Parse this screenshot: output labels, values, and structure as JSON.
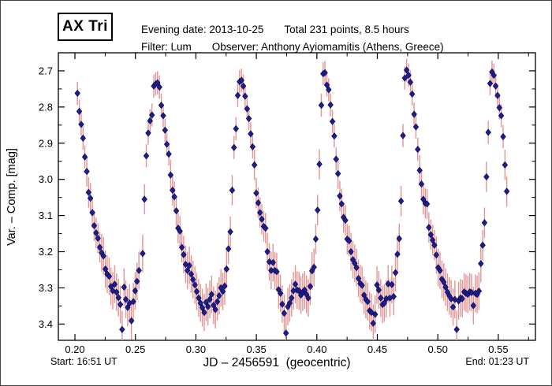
{
  "header": {
    "star_name": "AX Tri",
    "evening_date": "Evening date: 2013-10-25",
    "total_points": "Total 231 points, 8.5 hours",
    "filter": "Filter: Lum",
    "observer": "Observer: Anthony Ayiomamitis (Athens, Greece)"
  },
  "footer": {
    "start_time": "Start: 16:51 UT",
    "end_time": "End: 01:23 UT"
  },
  "chart_data": {
    "type": "scatter",
    "title": "AX Tri",
    "xlabel": "JD – 2456591  (geocentric)",
    "ylabel": "Var. – Comp. [mag]",
    "xlim": [
      0.1863,
      0.5807
    ],
    "ylim_top_bottom": [
      2.65,
      3.445
    ],
    "y_axis_inverted_magnitudes": true,
    "grid": false,
    "x_ticks": {
      "major": [
        0.2,
        0.25,
        0.3,
        0.35,
        0.4,
        0.45,
        0.5,
        0.55
      ],
      "labels": [
        "0.20",
        "0.25",
        "0.30",
        "0.35",
        "0.40",
        "0.45",
        "0.50",
        "0.55"
      ],
      "minor_step": 0.025
    },
    "y_ticks": {
      "major": [
        2.7,
        2.8,
        2.9,
        3.0,
        3.1,
        3.2,
        3.3,
        3.4
      ],
      "labels": [
        "2.7",
        "2.8",
        "2.9",
        "3.0",
        "3.1",
        "3.2",
        "3.3",
        "3.4"
      ],
      "minor_step": 0.05
    },
    "marker": {
      "shape": "diamond",
      "color": "#1e1e8f",
      "edge": "#0d0d5e",
      "half_width": 3.2,
      "half_height": 4.0
    },
    "error_bars": {
      "color": "#e59393",
      "line_width": 1.4,
      "rule": {
        "thresholds": [
          2.95,
          3.2
        ],
        "values": [
          0.032,
          0.042,
          0.052
        ]
      }
    },
    "points": [
      [
        0.2021,
        2.762
      ],
      [
        0.2036,
        2.812
      ],
      [
        0.2052,
        2.848
      ],
      [
        0.2067,
        2.886
      ],
      [
        0.2082,
        2.938
      ],
      [
        0.2098,
        2.978
      ],
      [
        0.2113,
        3.036
      ],
      [
        0.2128,
        3.052
      ],
      [
        0.2144,
        3.092
      ],
      [
        0.2159,
        3.128
      ],
      [
        0.2175,
        3.148
      ],
      [
        0.219,
        3.163
      ],
      [
        0.2206,
        3.188
      ],
      [
        0.2221,
        3.203
      ],
      [
        0.2236,
        3.212
      ],
      [
        0.2252,
        3.248
      ],
      [
        0.2267,
        3.262
      ],
      [
        0.2283,
        3.268
      ],
      [
        0.2298,
        3.296
      ],
      [
        0.2313,
        3.308
      ],
      [
        0.2329,
        3.29
      ],
      [
        0.2344,
        3.312
      ],
      [
        0.236,
        3.327
      ],
      [
        0.2375,
        3.346
      ],
      [
        0.239,
        3.415
      ],
      [
        0.2406,
        3.298
      ],
      [
        0.2421,
        3.332
      ],
      [
        0.2436,
        3.354
      ],
      [
        0.2452,
        3.342
      ],
      [
        0.2467,
        3.391
      ],
      [
        0.2483,
        3.338
      ],
      [
        0.2498,
        3.308
      ],
      [
        0.2513,
        3.282
      ],
      [
        0.2529,
        3.252
      ],
      [
        0.256,
        3.205
      ],
      [
        0.2575,
        3.055
      ],
      [
        0.259,
        2.935
      ],
      [
        0.2606,
        2.872
      ],
      [
        0.2621,
        2.838
      ],
      [
        0.2637,
        2.822
      ],
      [
        0.2652,
        2.742
      ],
      [
        0.2668,
        2.736
      ],
      [
        0.2683,
        2.733
      ],
      [
        0.2699,
        2.745
      ],
      [
        0.2714,
        2.795
      ],
      [
        0.273,
        2.824
      ],
      [
        0.2745,
        2.864
      ],
      [
        0.276,
        2.903
      ],
      [
        0.2776,
        2.93
      ],
      [
        0.2791,
        2.988
      ],
      [
        0.2807,
        3.03
      ],
      [
        0.2822,
        3.048
      ],
      [
        0.2838,
        3.087
      ],
      [
        0.2853,
        3.135
      ],
      [
        0.2868,
        3.143
      ],
      [
        0.2884,
        3.188
      ],
      [
        0.2899,
        3.208
      ],
      [
        0.2915,
        3.235
      ],
      [
        0.293,
        3.252
      ],
      [
        0.2946,
        3.238
      ],
      [
        0.2961,
        3.262
      ],
      [
        0.2976,
        3.277
      ],
      [
        0.2992,
        3.292
      ],
      [
        0.3007,
        3.31
      ],
      [
        0.3023,
        3.328
      ],
      [
        0.3038,
        3.342
      ],
      [
        0.3053,
        3.355
      ],
      [
        0.3069,
        3.368
      ],
      [
        0.3084,
        3.34
      ],
      [
        0.31,
        3.352
      ],
      [
        0.3115,
        3.332
      ],
      [
        0.313,
        3.318
      ],
      [
        0.3146,
        3.348
      ],
      [
        0.3161,
        3.36
      ],
      [
        0.3177,
        3.338
      ],
      [
        0.3192,
        3.322
      ],
      [
        0.3207,
        3.3
      ],
      [
        0.3223,
        3.31
      ],
      [
        0.3238,
        3.295
      ],
      [
        0.3254,
        3.248
      ],
      [
        0.3269,
        3.192
      ],
      [
        0.3285,
        3.145
      ],
      [
        0.33,
        3.03
      ],
      [
        0.3315,
        2.912
      ],
      [
        0.3331,
        2.86
      ],
      [
        0.3346,
        2.768
      ],
      [
        0.3361,
        2.73
      ],
      [
        0.3377,
        2.726
      ],
      [
        0.3392,
        2.742
      ],
      [
        0.3407,
        2.77
      ],
      [
        0.3423,
        2.805
      ],
      [
        0.3438,
        2.832
      ],
      [
        0.3453,
        2.874
      ],
      [
        0.3469,
        2.91
      ],
      [
        0.3484,
        2.96
      ],
      [
        0.3499,
        3.038
      ],
      [
        0.3515,
        3.065
      ],
      [
        0.353,
        3.092
      ],
      [
        0.3545,
        3.11
      ],
      [
        0.3561,
        3.13
      ],
      [
        0.3576,
        3.135
      ],
      [
        0.3591,
        3.2
      ],
      [
        0.3607,
        3.228
      ],
      [
        0.3622,
        3.252
      ],
      [
        0.3638,
        3.23
      ],
      [
        0.3653,
        3.252
      ],
      [
        0.3668,
        3.255
      ],
      [
        0.3684,
        3.305
      ],
      [
        0.3699,
        3.315
      ],
      [
        0.3714,
        3.345
      ],
      [
        0.373,
        3.37
      ],
      [
        0.3745,
        3.425
      ],
      [
        0.376,
        3.352
      ],
      [
        0.3776,
        3.342
      ],
      [
        0.3791,
        3.328
      ],
      [
        0.3806,
        3.308
      ],
      [
        0.3822,
        3.29
      ],
      [
        0.3837,
        3.306
      ],
      [
        0.3853,
        3.308
      ],
      [
        0.3868,
        3.32
      ],
      [
        0.3883,
        3.312
      ],
      [
        0.3899,
        3.306
      ],
      [
        0.3914,
        3.318
      ],
      [
        0.3929,
        3.328
      ],
      [
        0.3945,
        3.296
      ],
      [
        0.396,
        3.253
      ],
      [
        0.3976,
        3.243
      ],
      [
        0.3991,
        3.165
      ],
      [
        0.4006,
        3.085
      ],
      [
        0.4021,
        2.958
      ],
      [
        0.4037,
        2.795
      ],
      [
        0.4052,
        2.708
      ],
      [
        0.4067,
        2.705
      ],
      [
        0.4083,
        2.739
      ],
      [
        0.4098,
        2.752
      ],
      [
        0.4113,
        2.794
      ],
      [
        0.4129,
        2.84
      ],
      [
        0.4144,
        2.88
      ],
      [
        0.4159,
        2.944
      ],
      [
        0.4175,
        2.984
      ],
      [
        0.419,
        3.046
      ],
      [
        0.4205,
        3.068
      ],
      [
        0.4221,
        3.105
      ],
      [
        0.4236,
        3.113
      ],
      [
        0.4251,
        3.165
      ],
      [
        0.4267,
        3.17
      ],
      [
        0.4282,
        3.2
      ],
      [
        0.4298,
        3.222
      ],
      [
        0.4313,
        3.232
      ],
      [
        0.4328,
        3.244
      ],
      [
        0.4344,
        3.274
      ],
      [
        0.4359,
        3.288
      ],
      [
        0.4374,
        3.293
      ],
      [
        0.439,
        3.32
      ],
      [
        0.4405,
        3.332
      ],
      [
        0.442,
        3.338
      ],
      [
        0.4436,
        3.363
      ],
      [
        0.4451,
        3.368
      ],
      [
        0.4466,
        3.398
      ],
      [
        0.4482,
        3.373
      ],
      [
        0.4497,
        3.292
      ],
      [
        0.4512,
        3.306
      ],
      [
        0.4528,
        3.328
      ],
      [
        0.4543,
        3.346
      ],
      [
        0.4558,
        3.342
      ],
      [
        0.4574,
        3.33
      ],
      [
        0.4589,
        3.289
      ],
      [
        0.4604,
        3.328
      ],
      [
        0.462,
        3.291
      ],
      [
        0.4635,
        3.324
      ],
      [
        0.465,
        3.258
      ],
      [
        0.4666,
        3.207
      ],
      [
        0.4681,
        3.164
      ],
      [
        0.4696,
        3.06
      ],
      [
        0.4712,
        2.879
      ],
      [
        0.4727,
        2.72
      ],
      [
        0.4742,
        2.698
      ],
      [
        0.4758,
        2.712
      ],
      [
        0.4773,
        2.731
      ],
      [
        0.4788,
        2.764
      ],
      [
        0.4804,
        2.82
      ],
      [
        0.4819,
        2.855
      ],
      [
        0.4834,
        2.917
      ],
      [
        0.485,
        2.975
      ],
      [
        0.4865,
        3.013
      ],
      [
        0.488,
        3.055
      ],
      [
        0.4896,
        3.066
      ],
      [
        0.4911,
        3.068
      ],
      [
        0.4926,
        3.133
      ],
      [
        0.4942,
        3.153
      ],
      [
        0.4957,
        3.168
      ],
      [
        0.4972,
        3.182
      ],
      [
        0.4988,
        3.209
      ],
      [
        0.5003,
        3.244
      ],
      [
        0.5018,
        3.252
      ],
      [
        0.5034,
        3.276
      ],
      [
        0.5049,
        3.284
      ],
      [
        0.5064,
        3.298
      ],
      [
        0.508,
        3.312
      ],
      [
        0.5095,
        3.322
      ],
      [
        0.511,
        3.33
      ],
      [
        0.5126,
        3.353
      ],
      [
        0.5141,
        3.332
      ],
      [
        0.5156,
        3.415
      ],
      [
        0.5172,
        3.336
      ],
      [
        0.5187,
        3.328
      ],
      [
        0.5202,
        3.33
      ],
      [
        0.5218,
        3.311
      ],
      [
        0.5233,
        3.315
      ],
      [
        0.5248,
        3.318
      ],
      [
        0.5264,
        3.311
      ],
      [
        0.5279,
        3.313
      ],
      [
        0.5294,
        3.349
      ],
      [
        0.531,
        3.315
      ],
      [
        0.5325,
        3.318
      ],
      [
        0.534,
        3.309
      ],
      [
        0.5356,
        3.233
      ],
      [
        0.5371,
        3.182
      ],
      [
        0.5386,
        3.12
      ],
      [
        0.5402,
        2.993
      ],
      [
        0.5417,
        2.87
      ],
      [
        0.5432,
        2.735
      ],
      [
        0.5448,
        2.703
      ],
      [
        0.5463,
        2.712
      ],
      [
        0.5478,
        2.742
      ],
      [
        0.5494,
        2.768
      ],
      [
        0.5509,
        2.802
      ],
      [
        0.5524,
        2.824
      ],
      [
        0.554,
        2.882
      ],
      [
        0.5555,
        2.96
      ],
      [
        0.557,
        3.033
      ]
    ]
  }
}
